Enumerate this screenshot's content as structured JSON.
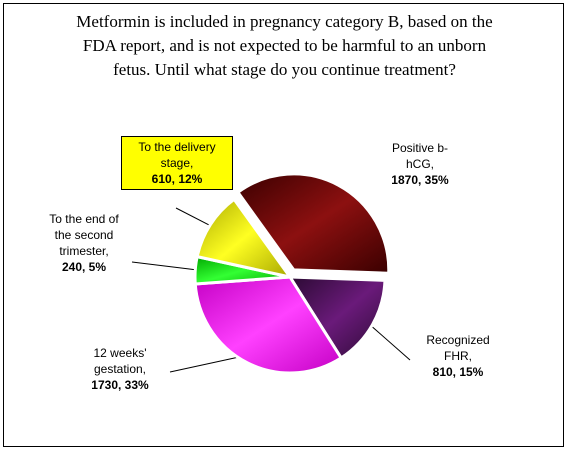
{
  "chart_data": {
    "type": "pie",
    "title_lines": [
      "Metformin is included in pregnancy category B, based on the",
      "FDA report, and is not expected to be harmful to an unborn",
      "fetus. Until what stage do you continue treatment?"
    ],
    "slices": [
      {
        "name_lines": [
          "Positive b-",
          "hCG,"
        ],
        "value": 1870,
        "percent": 35,
        "value_text": "1870, 35%",
        "color_dark": "#3a0000",
        "color_light": "#8c1010",
        "exploded": true
      },
      {
        "name_lines": [
          "Recognized",
          "FHR,"
        ],
        "value": 810,
        "percent": 15,
        "value_text": "810, 15%",
        "color_dark": "#2b0a33",
        "color_light": "#6a1a7a",
        "exploded": false
      },
      {
        "name_lines": [
          "12 weeks'",
          "gestation,"
        ],
        "value": 1730,
        "percent": 33,
        "value_text": "1730, 33%",
        "color_dark": "#c400c4",
        "color_light": "#ff40ff",
        "exploded": false
      },
      {
        "name_lines": [
          "To the end of",
          "the second",
          "trimester,"
        ],
        "value": 240,
        "percent": 5,
        "value_text": "240, 5%",
        "color_dark": "#00a800",
        "color_light": "#33ff33",
        "exploded": false
      },
      {
        "name_lines": [
          "To the delivery",
          "stage,"
        ],
        "value": 610,
        "percent": 12,
        "value_text": "610, 12%",
        "color_dark": "#a8a800",
        "color_light": "#ffff22",
        "exploded": false
      }
    ]
  }
}
